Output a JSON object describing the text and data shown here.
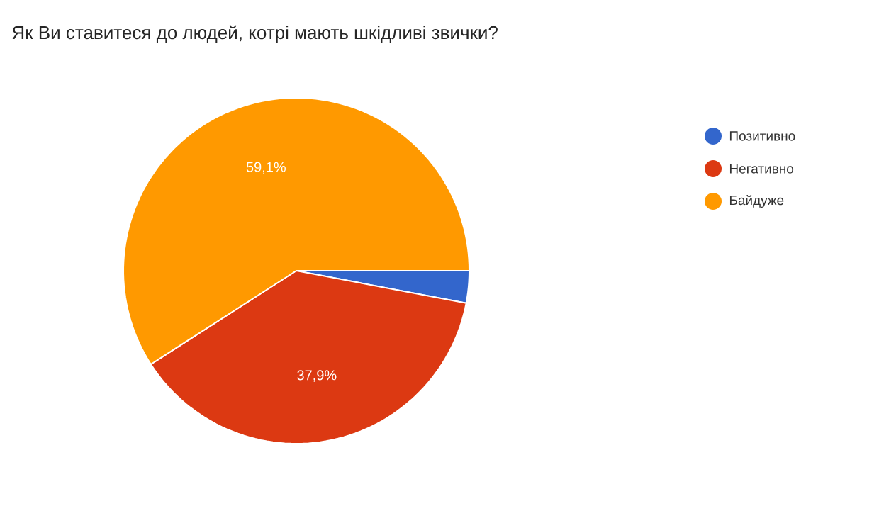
{
  "chart_data": {
    "type": "pie",
    "title": "Як Ви ставитеся до людей, котрі мають шкідливі звички?",
    "categories": [
      "Позитивно",
      "Негативно",
      "Байдуже"
    ],
    "values": [
      3.0,
      37.9,
      59.1
    ],
    "colors": [
      "#3366cc",
      "#dc3912",
      "#ff9900"
    ],
    "value_labels": [
      null,
      "37,9%",
      "59,1%"
    ],
    "legend": "top right"
  }
}
